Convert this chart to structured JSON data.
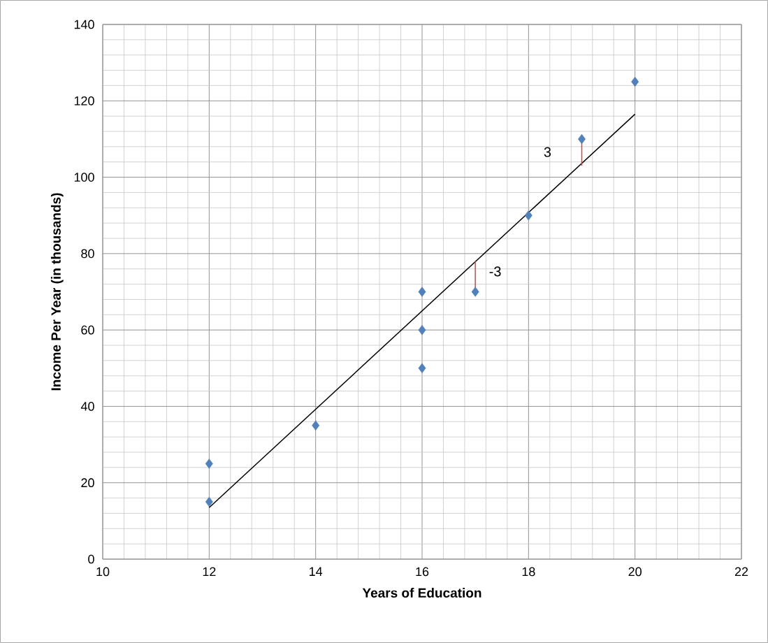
{
  "chart_data": {
    "type": "scatter",
    "xlabel": "Years of Education",
    "ylabel": "Income Per Year (in thousands)",
    "xlim": [
      10,
      22
    ],
    "xticks": [
      10,
      12,
      14,
      16,
      18,
      20,
      22
    ],
    "ylim": [
      0,
      140
    ],
    "yticks": [
      0,
      20,
      40,
      60,
      80,
      100,
      120,
      140
    ],
    "grid": true,
    "series": [
      {
        "marker": "diamond",
        "color": "#4f81bd",
        "x": [
          12,
          12,
          14,
          16,
          16,
          16,
          17,
          18,
          19,
          20
        ],
        "values": [
          25,
          15,
          35,
          70,
          60,
          50,
          70,
          90,
          110,
          125
        ]
      },
      {
        "type": "line",
        "marker": "none",
        "color": "#000000",
        "x": [
          12,
          20
        ],
        "values": [
          13.5,
          116.5
        ]
      },
      {
        "type": "line",
        "marker": "none",
        "color": "#c0504d",
        "x": [
          17,
          17
        ],
        "values": [
          70,
          78
        ]
      },
      {
        "type": "line",
        "marker": "none",
        "color": "#c0504d",
        "x": [
          19,
          19
        ],
        "values": [
          110,
          103
        ]
      }
    ],
    "annotations": [
      {
        "text": "-3",
        "x": 17,
        "y": 78
      },
      {
        "text": "3",
        "x": 19,
        "y": 110
      }
    ]
  }
}
